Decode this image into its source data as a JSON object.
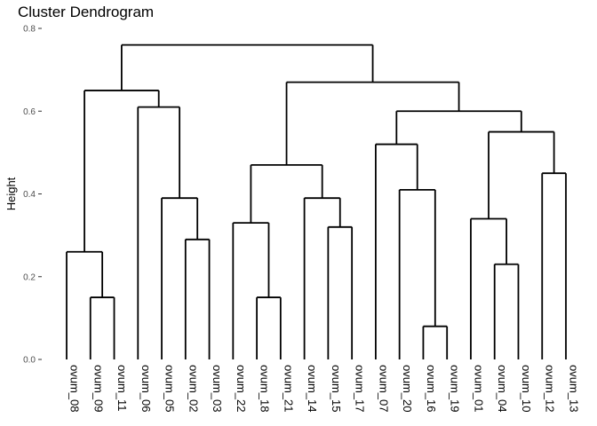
{
  "chart_data": {
    "type": "dendrogram",
    "title": "Cluster Dendrogram",
    "xlabel": "",
    "ylabel": "Height",
    "ylim": [
      0,
      0.8
    ],
    "yticks": [
      "0.0",
      "0.2",
      "0.4",
      "0.6",
      "0.8"
    ],
    "ytick_values": [
      0,
      0.2,
      0.4,
      0.6,
      0.8
    ],
    "grid": false,
    "leaves": [
      "ovum_08",
      "ovum_09",
      "ovum_11",
      "ovum_06",
      "ovum_05",
      "ovum_02",
      "ovum_03",
      "ovum_22",
      "ovum_18",
      "ovum_21",
      "ovum_14",
      "ovum_15",
      "ovum_17",
      "ovum_07",
      "ovum_20",
      "ovum_16",
      "ovum_19",
      "ovum_01",
      "ovum_04",
      "ovum_10",
      "ovum_12",
      "ovum_13"
    ],
    "merges": [
      {
        "left": "ovum_09",
        "right": "ovum_11",
        "height": 0.15
      },
      {
        "left": "ovum_08",
        "right": "m1",
        "height": 0.26
      },
      {
        "left": "ovum_02",
        "right": "ovum_03",
        "height": 0.29
      },
      {
        "left": "ovum_05",
        "right": "m3",
        "height": 0.39
      },
      {
        "left": "ovum_06",
        "right": "m4",
        "height": 0.61
      },
      {
        "left": "m2",
        "right": "m5",
        "height": 0.65
      },
      {
        "left": "ovum_18",
        "right": "ovum_21",
        "height": 0.15
      },
      {
        "left": "ovum_22",
        "right": "m7",
        "height": 0.33
      },
      {
        "left": "ovum_15",
        "right": "ovum_17",
        "height": 0.32
      },
      {
        "left": "ovum_14",
        "right": "m9",
        "height": 0.39
      },
      {
        "left": "m8",
        "right": "m10",
        "height": 0.47
      },
      {
        "left": "ovum_16",
        "right": "ovum_19",
        "height": 0.08
      },
      {
        "left": "ovum_20",
        "right": "m12",
        "height": 0.41
      },
      {
        "left": "ovum_07",
        "right": "m13",
        "height": 0.52
      },
      {
        "left": "ovum_04",
        "right": "ovum_10",
        "height": 0.23
      },
      {
        "left": "ovum_01",
        "right": "m15",
        "height": 0.34
      },
      {
        "left": "ovum_12",
        "right": "ovum_13",
        "height": 0.45
      },
      {
        "left": "m16",
        "right": "m17",
        "height": 0.55
      },
      {
        "left": "m14",
        "right": "m18",
        "height": 0.6
      },
      {
        "left": "m11",
        "right": "m19",
        "height": 0.67
      },
      {
        "left": "m6",
        "right": "m20",
        "height": 0.76
      }
    ]
  }
}
